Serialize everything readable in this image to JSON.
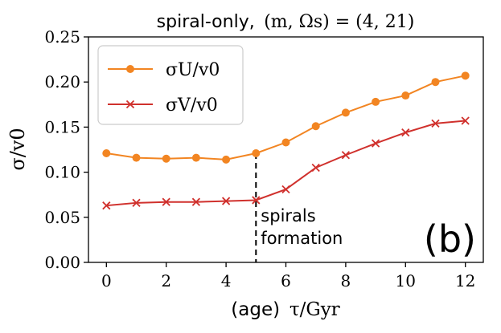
{
  "chart_data": {
    "type": "line",
    "title_text": "spiral-only,",
    "title_math": "(m, Ωs) = (4, 21)",
    "xlabel_text": "(age)",
    "xlabel_math": "τ/Gyr",
    "ylabel": "σ/v0",
    "xlim": [
      -0.6,
      12.6
    ],
    "ylim": [
      0.0,
      0.25
    ],
    "x_ticks": [
      "0",
      "2",
      "4",
      "6",
      "8",
      "10",
      "12"
    ],
    "y_ticks": [
      "0.00",
      "0.05",
      "0.10",
      "0.15",
      "0.20",
      "0.25"
    ],
    "x": [
      0,
      1,
      2,
      3,
      4,
      5,
      6,
      7,
      8,
      9,
      10,
      11,
      12
    ],
    "series": [
      {
        "name": "σU/v0",
        "color": "#f28522",
        "marker": "circle",
        "values": [
          0.121,
          0.116,
          0.115,
          0.116,
          0.114,
          0.121,
          0.133,
          0.151,
          0.166,
          0.178,
          0.185,
          0.2,
          0.207
        ]
      },
      {
        "name": "σV/v0",
        "color": "#d0312d",
        "marker": "x",
        "values": [
          0.063,
          0.066,
          0.067,
          0.067,
          0.068,
          0.069,
          0.081,
          0.105,
          0.119,
          0.132,
          0.144,
          0.154,
          0.157
        ]
      }
    ],
    "vline": {
      "x": 5,
      "style": "dashed",
      "label_lines": [
        "spirals",
        "formation"
      ]
    },
    "panel_label": "(b)",
    "legend_position": "top-left",
    "grid": false
  }
}
